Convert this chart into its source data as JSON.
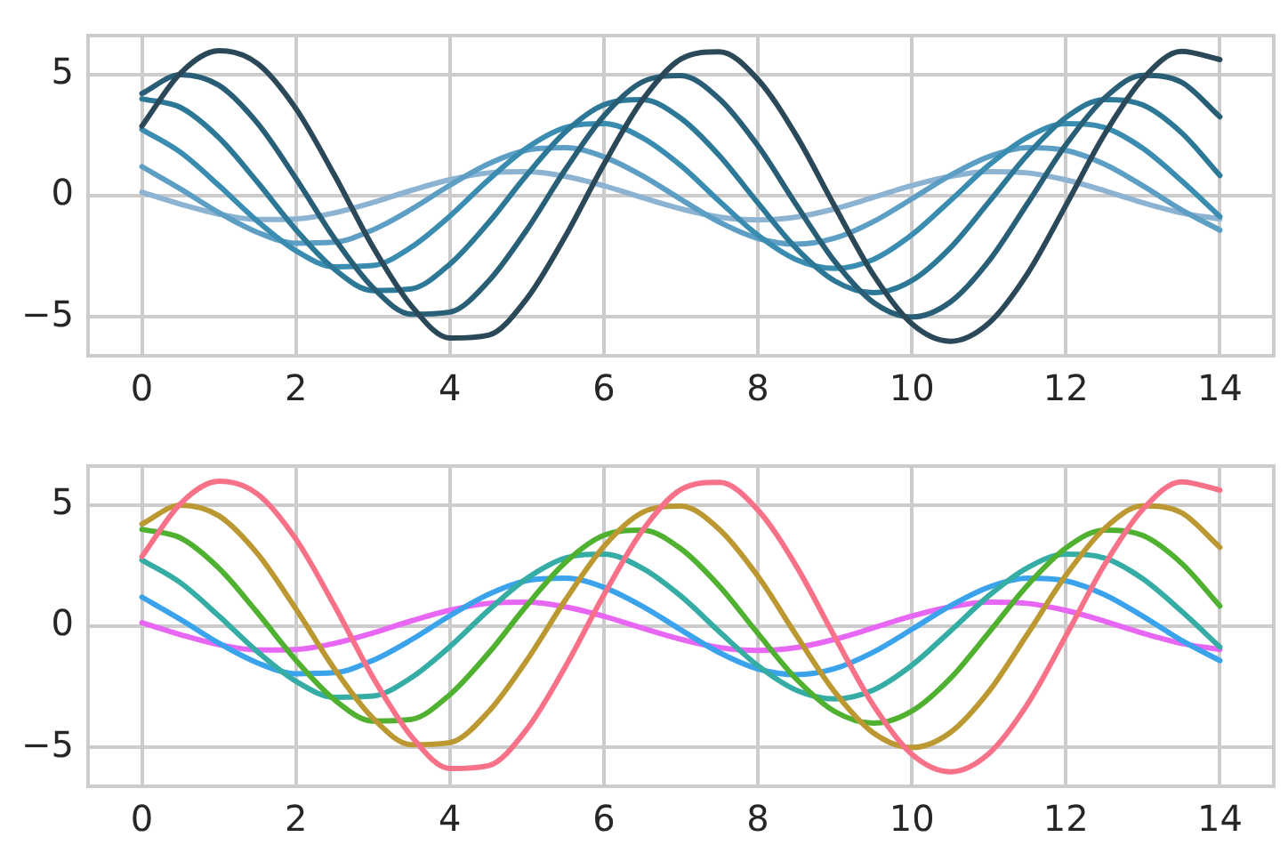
{
  "chart_data": [
    {
      "type": "line",
      "x": [
        0,
        0.5,
        1,
        1.5,
        2,
        2.5,
        3,
        3.5,
        4,
        4.5,
        5,
        5.5,
        6,
        6.5,
        7,
        7.5,
        8,
        8.5,
        9,
        9.5,
        10,
        10.5,
        11,
        11.5,
        12,
        12.5,
        13,
        13.5,
        14
      ],
      "xlim": [
        -0.7,
        14.7
      ],
      "xticks": [
        0,
        2,
        4,
        6,
        8,
        10,
        12,
        14
      ],
      "ylim": [
        -6.6,
        6.6
      ],
      "yticks": [
        -5,
        0,
        5
      ],
      "grid": true,
      "marker": "none",
      "legend": false,
      "series": [
        {
          "color": "#2b4858",
          "values": [
            2.87,
            5.05,
            5.98,
            5.45,
            3.59,
            0.85,
            -2.11,
            -4.54,
            -5.87,
            -5.75,
            -4.24,
            -1.67,
            1.29,
            3.94,
            5.63,
            5.93,
            4.79,
            2.47,
            -0.45,
            -3.26,
            -5.28,
            -6.0,
            -5.25,
            -3.22,
            -0.4,
            2.52,
            4.82,
            5.95,
            5.61
          ]
        },
        {
          "color": "#295e77",
          "values": [
            4.21,
            4.99,
            4.55,
            2.99,
            0.71,
            -1.76,
            -3.79,
            -4.89,
            -4.8,
            -3.53,
            -1.4,
            1.08,
            3.29,
            4.69,
            4.95,
            3.99,
            2.06,
            -0.38,
            -2.72,
            -4.4,
            -5.0,
            -4.38,
            -2.69,
            -0.33,
            2.1,
            4.02,
            4.96,
            4.68,
            3.25
          ]
        },
        {
          "color": "#2c7896",
          "values": [
            3.99,
            3.64,
            2.39,
            0.56,
            -1.4,
            -3.03,
            -3.91,
            -3.84,
            -2.82,
            -1.12,
            0.86,
            2.63,
            3.75,
            3.96,
            3.19,
            1.65,
            -0.3,
            -2.18,
            -3.52,
            -4.0,
            -3.5,
            -2.15,
            -0.26,
            1.68,
            3.22,
            3.96,
            3.74,
            2.6,
            0.83
          ]
        },
        {
          "color": "#3a8db0",
          "values": [
            2.73,
            1.79,
            0.42,
            -1.05,
            -2.27,
            -2.93,
            -2.88,
            -2.12,
            -0.84,
            0.65,
            1.97,
            2.81,
            2.97,
            2.39,
            1.24,
            -0.23,
            -1.63,
            -2.64,
            -3.0,
            -2.63,
            -1.61,
            -0.2,
            1.26,
            2.41,
            2.97,
            2.81,
            1.95,
            0.62,
            -0.86
          ]
        },
        {
          "color": "#5d9fc4",
          "values": [
            1.2,
            0.28,
            -0.7,
            -1.51,
            -1.96,
            -1.92,
            -1.41,
            -0.56,
            0.43,
            1.31,
            1.88,
            1.98,
            1.6,
            0.82,
            -0.15,
            -1.09,
            -1.76,
            -2.0,
            -1.75,
            -1.07,
            -0.13,
            0.84,
            1.61,
            1.98,
            1.87,
            1.3,
            0.41,
            -0.58,
            -1.42
          ]
        },
        {
          "color": "#8cb3d2",
          "values": [
            0.14,
            -0.35,
            -0.76,
            -0.98,
            -0.96,
            -0.71,
            -0.28,
            0.22,
            0.66,
            0.94,
            0.99,
            0.8,
            0.41,
            -0.08,
            -0.54,
            -0.88,
            -1.0,
            -0.88,
            -0.54,
            -0.07,
            0.42,
            0.8,
            0.99,
            0.94,
            0.65,
            0.21,
            -0.29,
            -0.71,
            -0.96
          ]
        }
      ]
    },
    {
      "type": "line",
      "x": [
        0,
        0.5,
        1,
        1.5,
        2,
        2.5,
        3,
        3.5,
        4,
        4.5,
        5,
        5.5,
        6,
        6.5,
        7,
        7.5,
        8,
        8.5,
        9,
        9.5,
        10,
        10.5,
        11,
        11.5,
        12,
        12.5,
        13,
        13.5,
        14
      ],
      "xlim": [
        -0.7,
        14.7
      ],
      "xticks": [
        0,
        2,
        4,
        6,
        8,
        10,
        12,
        14
      ],
      "ylim": [
        -6.6,
        6.6
      ],
      "yticks": [
        -5,
        0,
        5
      ],
      "grid": true,
      "marker": "none",
      "legend": false,
      "series": [
        {
          "color": "#f77189",
          "values": [
            2.87,
            5.05,
            5.98,
            5.45,
            3.59,
            0.85,
            -2.11,
            -4.54,
            -5.87,
            -5.75,
            -4.24,
            -1.67,
            1.29,
            3.94,
            5.63,
            5.93,
            4.79,
            2.47,
            -0.45,
            -3.26,
            -5.28,
            -6.0,
            -5.25,
            -3.22,
            -0.4,
            2.52,
            4.82,
            5.95,
            5.61
          ]
        },
        {
          "color": "#bb9832",
          "values": [
            4.21,
            4.99,
            4.55,
            2.99,
            0.71,
            -1.76,
            -3.79,
            -4.89,
            -4.8,
            -3.53,
            -1.4,
            1.08,
            3.29,
            4.69,
            4.95,
            3.99,
            2.06,
            -0.38,
            -2.72,
            -4.4,
            -5.0,
            -4.38,
            -2.69,
            -0.33,
            2.1,
            4.02,
            4.96,
            4.68,
            3.25
          ]
        },
        {
          "color": "#50b131",
          "values": [
            3.99,
            3.64,
            2.39,
            0.56,
            -1.4,
            -3.03,
            -3.91,
            -3.84,
            -2.82,
            -1.12,
            0.86,
            2.63,
            3.75,
            3.96,
            3.19,
            1.65,
            -0.3,
            -2.18,
            -3.52,
            -4.0,
            -3.5,
            -2.15,
            -0.26,
            1.68,
            3.22,
            3.96,
            3.74,
            2.6,
            0.83
          ]
        },
        {
          "color": "#36ada4",
          "values": [
            2.73,
            1.79,
            0.42,
            -1.05,
            -2.27,
            -2.93,
            -2.88,
            -2.12,
            -0.84,
            0.65,
            1.97,
            2.81,
            2.97,
            2.39,
            1.24,
            -0.23,
            -1.63,
            -2.64,
            -3.0,
            -2.63,
            -1.61,
            -0.2,
            1.26,
            2.41,
            2.97,
            2.81,
            1.95,
            0.62,
            -0.86
          ]
        },
        {
          "color": "#3ba3ec",
          "values": [
            1.2,
            0.28,
            -0.7,
            -1.51,
            -1.96,
            -1.92,
            -1.41,
            -0.56,
            0.43,
            1.31,
            1.88,
            1.98,
            1.6,
            0.82,
            -0.15,
            -1.09,
            -1.76,
            -2.0,
            -1.75,
            -1.07,
            -0.13,
            0.84,
            1.61,
            1.98,
            1.87,
            1.3,
            0.41,
            -0.58,
            -1.42
          ]
        },
        {
          "color": "#e866f4",
          "values": [
            0.14,
            -0.35,
            -0.76,
            -0.98,
            -0.96,
            -0.71,
            -0.28,
            0.22,
            0.66,
            0.94,
            0.99,
            0.8,
            0.41,
            -0.08,
            -0.54,
            -0.88,
            -1.0,
            -0.88,
            -0.54,
            -0.07,
            0.42,
            0.8,
            0.99,
            0.94,
            0.65,
            0.21,
            -0.29,
            -0.71,
            -0.96
          ]
        }
      ]
    }
  ]
}
